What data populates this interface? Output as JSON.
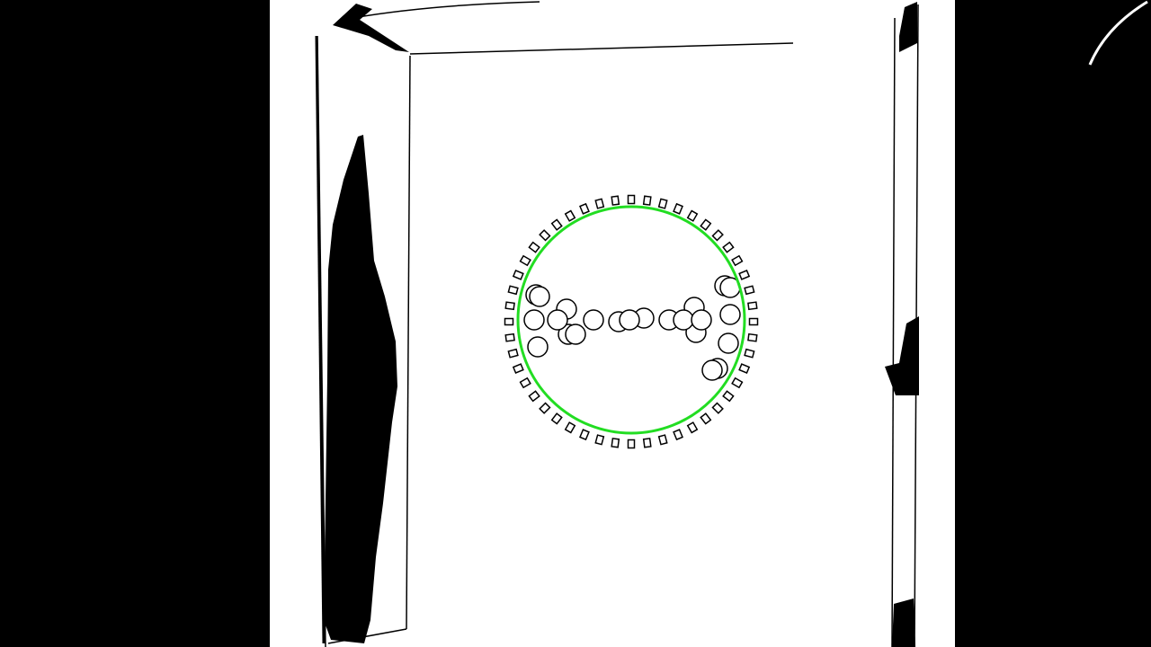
{
  "image": {
    "kind": "binary-threshold-image",
    "overlay_color": "#22dd22",
    "foreground": "#000000",
    "background": "#ffffff"
  },
  "detection": {
    "shape": "circle",
    "count": 1
  },
  "gear": {
    "tooth_count": 48,
    "hole_count": 23
  }
}
